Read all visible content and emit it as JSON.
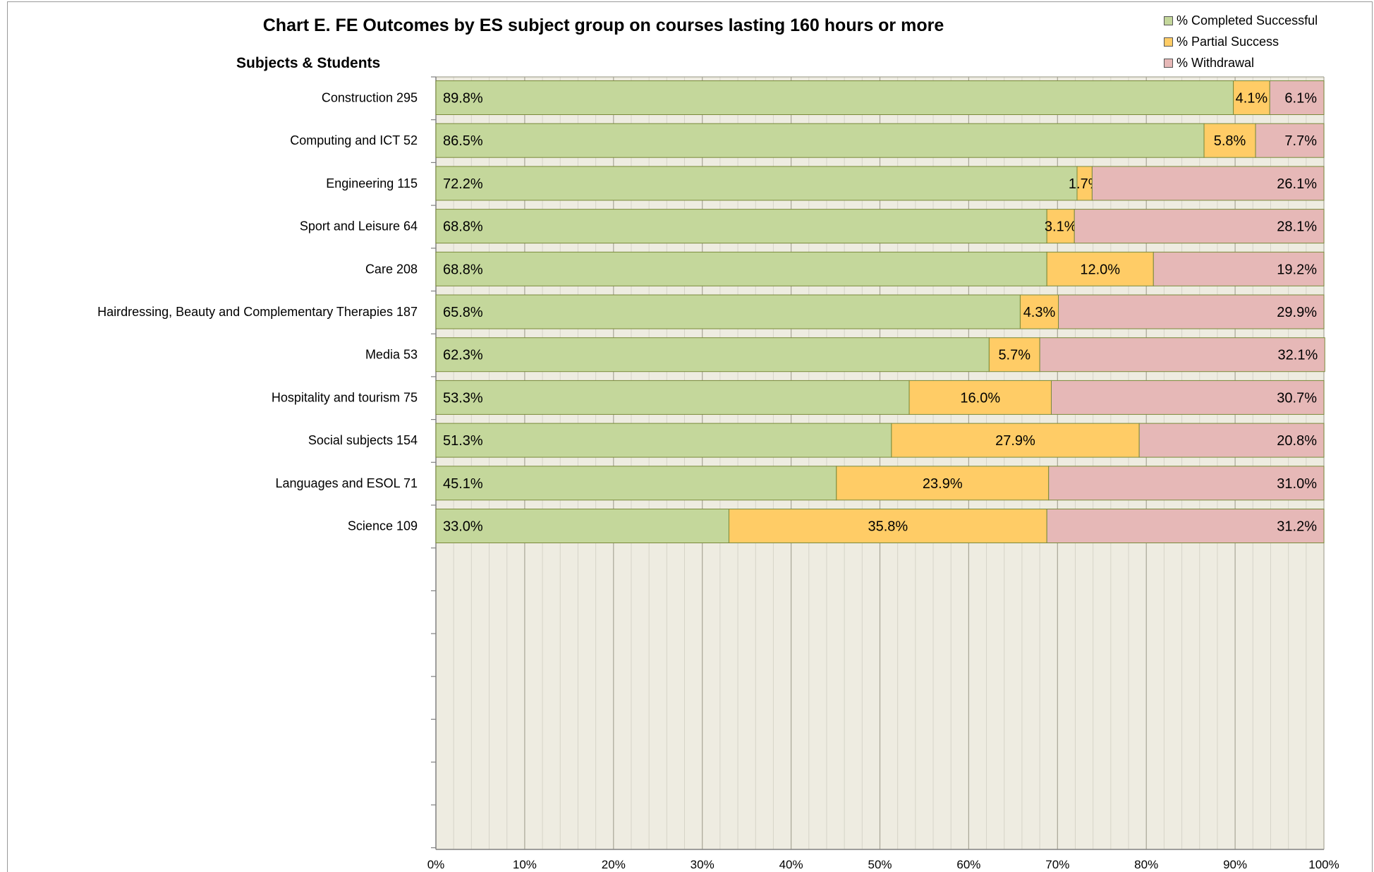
{
  "chart_data": {
    "type": "bar",
    "orientation": "horizontal",
    "stacked": true,
    "title": "Chart E. FE Outcomes by ES subject group on courses lasting 160 hours or more",
    "category_heading": "Subjects & Students",
    "categories": [
      "Construction  295",
      "Computing and ICT  52",
      "Engineering  115",
      "Sport and Leisure  64",
      "Care  208",
      "Hairdressing, Beauty and Complementary Therapies  187",
      "Media  53",
      "Hospitality and tourism  75",
      "Social subjects  154",
      "Languages and ESOL  71",
      "Science  109"
    ],
    "series": [
      {
        "name": "% Completed Successful",
        "color": "#c4d79b",
        "values": [
          89.8,
          86.5,
          72.2,
          68.8,
          68.8,
          65.8,
          62.3,
          53.3,
          51.3,
          45.1,
          33.0
        ]
      },
      {
        "name": "% Partial Success",
        "color": "#ffcc66",
        "values": [
          4.1,
          5.8,
          1.7,
          3.1,
          12.0,
          4.3,
          5.7,
          16.0,
          27.9,
          23.9,
          35.8
        ]
      },
      {
        "name": "% Withdrawal",
        "color": "#e6b8b7",
        "values": [
          6.1,
          7.7,
          26.1,
          28.1,
          19.2,
          29.9,
          32.1,
          30.7,
          20.8,
          31.0,
          31.2
        ]
      }
    ],
    "x_ticks": [
      "0%",
      "10%",
      "20%",
      "30%",
      "40%",
      "50%",
      "60%",
      "70%",
      "80%",
      "90%",
      "100%"
    ],
    "xlim": [
      0,
      100
    ],
    "legend_position": "top-right",
    "grid": true,
    "plot_background": "#eeece1"
  }
}
